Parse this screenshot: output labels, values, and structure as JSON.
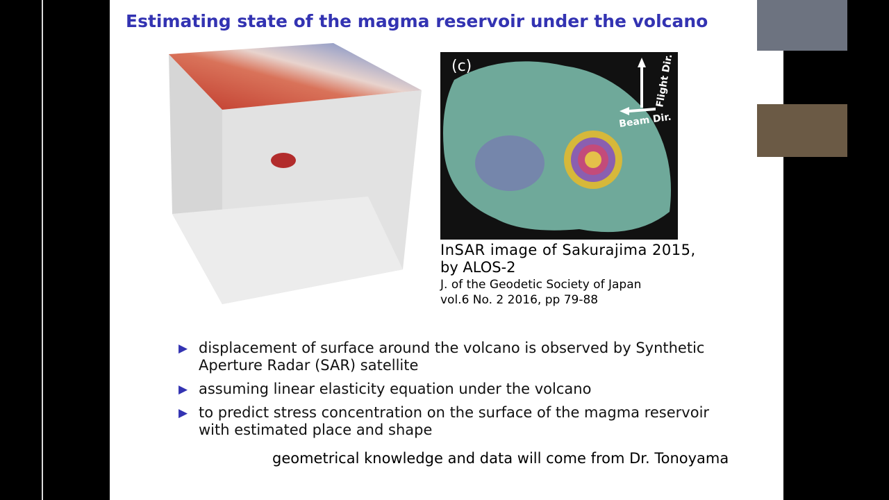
{
  "slide": {
    "title": "Estimating state of the magma reservoir under the volcano",
    "figure": {
      "panel_label": "(c)",
      "flight_dir": "Flight Dir.",
      "beam_dir": "Beam Dir."
    },
    "caption": {
      "line1": "InSAR image of Sakurajima 2015,",
      "line2": "by ALOS-2",
      "line3": "J. of the Geodetic Society of Japan",
      "line4": "vol.6 No. 2 2016, pp 79-88"
    },
    "bullets": [
      [
        "displacement of surface around the volcano is observed by Synthetic",
        "Aperture Radar (SAR) satellite"
      ],
      [
        "assuming linear elasticity equation under the volcano"
      ],
      [
        "to predict stress concentration on the surface of the magma reservoir",
        "with estimated place and shape"
      ]
    ],
    "footer": "geometrical knowledge and data will come from Dr. Tonoyama"
  }
}
